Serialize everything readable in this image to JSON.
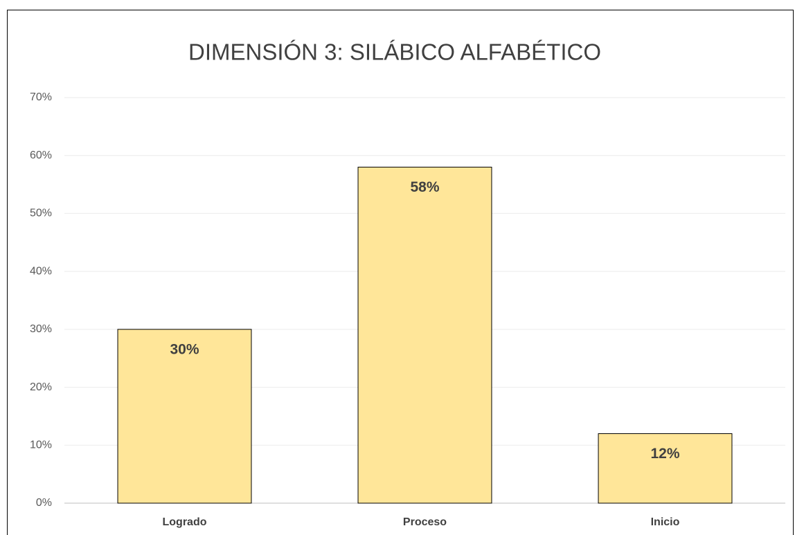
{
  "chart_data": {
    "type": "bar",
    "title": "DIMENSIÓN 3: SILÁBICO ALFABÉTICO",
    "categories": [
      "Logrado",
      "Proceso",
      "Inicio"
    ],
    "values": [
      30,
      58,
      12
    ],
    "value_labels": [
      "30%",
      "58%",
      "12%"
    ],
    "color": "#ffe699",
    "ylim": [
      0,
      70
    ],
    "yticks": [
      {
        "value": 0,
        "label": "0%"
      },
      {
        "value": 10,
        "label": "10%"
      },
      {
        "value": 20,
        "label": "20%"
      },
      {
        "value": 30,
        "label": "30%"
      },
      {
        "value": 40,
        "label": "40%"
      },
      {
        "value": 50,
        "label": "50%"
      },
      {
        "value": 60,
        "label": "60%"
      },
      {
        "value": 70,
        "label": "70%"
      }
    ],
    "grid": true
  }
}
